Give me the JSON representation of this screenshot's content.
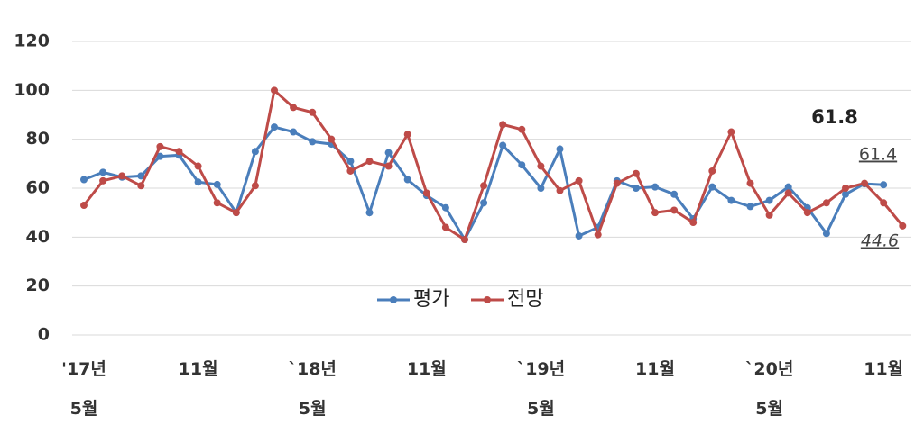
{
  "chart_data": {
    "type": "line",
    "categories": [
      "'17년 5월",
      null,
      null,
      null,
      null,
      null,
      "11월",
      null,
      null,
      null,
      null,
      null,
      "`18년 5월",
      null,
      null,
      null,
      null,
      null,
      "11월",
      null,
      null,
      null,
      null,
      null,
      "`19년 5월",
      null,
      null,
      null,
      null,
      null,
      "11월",
      null,
      null,
      null,
      null,
      null,
      "`20년 5월",
      null,
      null,
      null,
      null,
      null,
      "11월",
      null
    ],
    "series": [
      {
        "name": "평가",
        "color": "#4a7ebb",
        "values": [
          63.5,
          66.5,
          64.5,
          65,
          73,
          73.5,
          62.5,
          61.5,
          50,
          75,
          85,
          83,
          79,
          78,
          71,
          50,
          74.5,
          63.5,
          57,
          52,
          39,
          54,
          77.5,
          69.5,
          60,
          76,
          40.5,
          44,
          63,
          60,
          60.5,
          57.5,
          47.5,
          60.5,
          55,
          52.5,
          55,
          60.5,
          52,
          41.5,
          57.5,
          61.8,
          61.4,
          null
        ]
      },
      {
        "name": "전망",
        "color": "#be4b48",
        "values": [
          53,
          63,
          65,
          61,
          77,
          75,
          69,
          54,
          50,
          61,
          100,
          93,
          91,
          80,
          67,
          71,
          69,
          82,
          58,
          44,
          39,
          61,
          86,
          84,
          69,
          59,
          63,
          41,
          62,
          66,
          50,
          51,
          46,
          67,
          83,
          62,
          49,
          58,
          50,
          54,
          60,
          62,
          54,
          44.6
        ]
      }
    ],
    "annotations": [
      {
        "text": 61.8,
        "style": "bold"
      },
      {
        "text": 61.4,
        "style": "underline"
      },
      {
        "text": 44.6,
        "style": "italic-underline"
      }
    ],
    "ylim": [
      0,
      120
    ],
    "yticks": [
      0,
      20,
      40,
      60,
      80,
      100,
      120
    ],
    "grid": true
  }
}
